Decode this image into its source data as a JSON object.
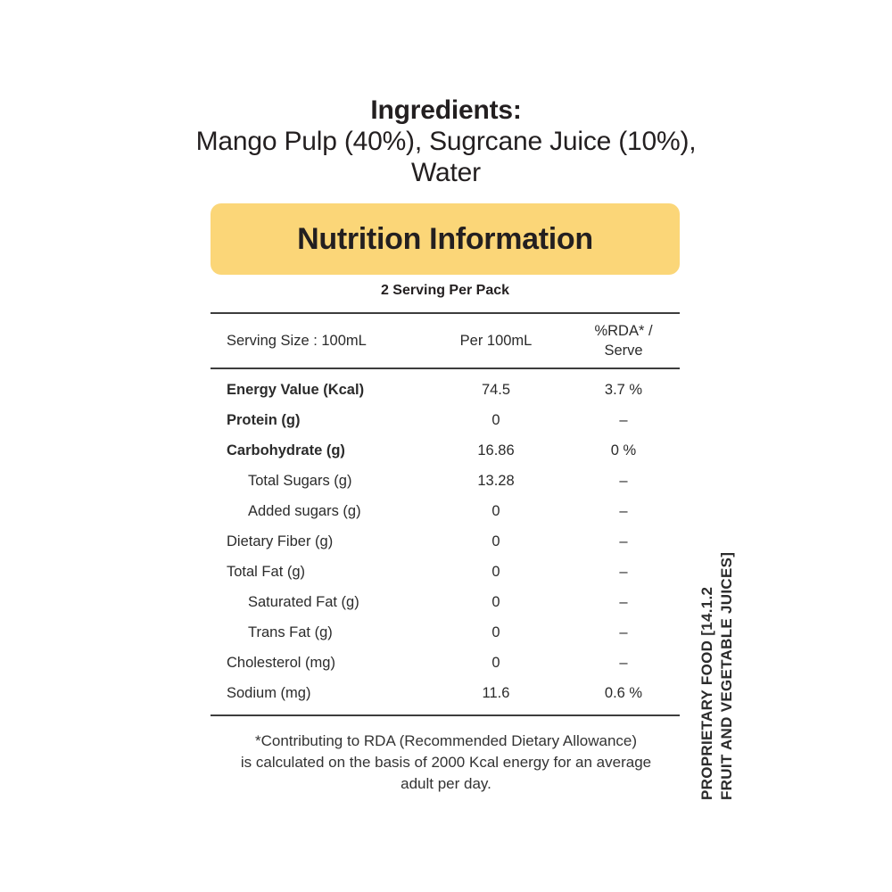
{
  "ingredients": {
    "heading": "Ingredients:",
    "text": "Mango Pulp (40%), Sugrcane Juice (10%), Water"
  },
  "nutrition": {
    "title": "Nutrition Information",
    "banner_color": "#fbd678",
    "serving_note": "2 Serving Per Pack",
    "header": {
      "col1": "Serving Size : 100mL",
      "col2": "Per 100mL",
      "col3": "%RDA* / Serve"
    },
    "rows": [
      {
        "label": "Energy Value (Kcal)",
        "value": "74.5",
        "rda": "3.7 %",
        "bold": true,
        "indent": false
      },
      {
        "label": "Protein (g)",
        "value": "0",
        "rda": "–",
        "bold": true,
        "indent": false
      },
      {
        "label": "Carbohydrate (g)",
        "value": "16.86",
        "rda": "0 %",
        "bold": true,
        "indent": false
      },
      {
        "label": "Total Sugars (g)",
        "value": "13.28",
        "rda": "–",
        "bold": false,
        "indent": true
      },
      {
        "label": "Added sugars (g)",
        "value": "0",
        "rda": "–",
        "bold": false,
        "indent": true
      },
      {
        "label": "Dietary Fiber (g)",
        "value": "0",
        "rda": "–",
        "bold": false,
        "indent": false
      },
      {
        "label": "Total Fat (g)",
        "value": "0",
        "rda": "–",
        "bold": false,
        "indent": false
      },
      {
        "label": "Saturated Fat (g)",
        "value": "0",
        "rda": "–",
        "bold": false,
        "indent": true
      },
      {
        "label": "Trans Fat (g)",
        "value": "0",
        "rda": "–",
        "bold": false,
        "indent": true
      },
      {
        "label": "Cholesterol (mg)",
        "value": "0",
        "rda": "–",
        "bold": false,
        "indent": false
      },
      {
        "label": "Sodium (mg)",
        "value": "11.6",
        "rda": "0.6 %",
        "bold": false,
        "indent": false
      }
    ],
    "footnote_lines": [
      "*Contributing to RDA (Recommended Dietary Allowance)",
      "is calculated on the basis of 2000 Kcal energy for an average",
      "adult per day."
    ]
  },
  "side_label": {
    "line1": "PROPRIETARY FOOD [14.1.2",
    "line2": "FRUIT AND VEGETABLE JUICES]"
  },
  "colors": {
    "text": "#231f20",
    "rule_line": "#3d3d3d"
  }
}
